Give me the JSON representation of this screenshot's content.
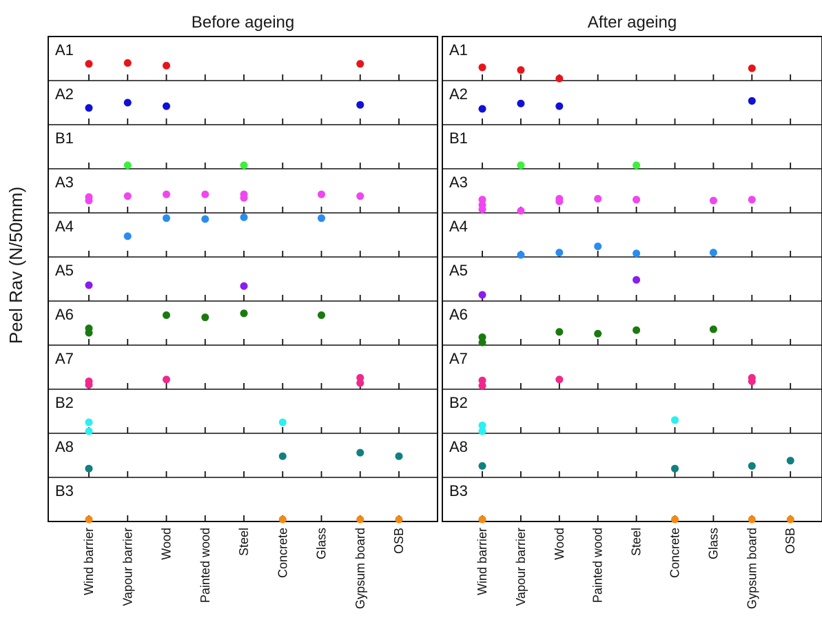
{
  "ylabel": "Peel Rav (N/50mm)",
  "categories": [
    "Wind barrier",
    "Vapour barrier",
    "Wood",
    "Painted wood",
    "Steel",
    "Concrete",
    "Glass",
    "Gypsum board",
    "OSB"
  ],
  "rows": [
    {
      "label": "A1",
      "color": "#e8141c"
    },
    {
      "label": "A2",
      "color": "#1010d8"
    },
    {
      "label": "B1",
      "color": "#3cf03c"
    },
    {
      "label": "A3",
      "color": "#f046f0"
    },
    {
      "label": "A4",
      "color": "#2a8cf0"
    },
    {
      "label": "A5",
      "color": "#8a1cf0"
    },
    {
      "label": "A6",
      "color": "#1a7a10"
    },
    {
      "label": "A7",
      "color": "#f0288c"
    },
    {
      "label": "B2",
      "color": "#2af0f0"
    },
    {
      "label": "A8",
      "color": "#108080"
    },
    {
      "label": "B3",
      "color": "#f08a14"
    }
  ],
  "chart_data": [
    {
      "type": "scatter",
      "title": "Before ageing",
      "ylabel": "Peel Rav (N/50mm)",
      "categories": [
        "Wind barrier",
        "Vapour barrier",
        "Wood",
        "Painted wood",
        "Steel",
        "Concrete",
        "Glass",
        "Gypsum board",
        "OSB"
      ],
      "note": "values are relative position within each row band (0 = bottom, 1 = top)",
      "series": [
        {
          "name": "A1",
          "points": [
            [
              0,
              0.38
            ],
            [
              1,
              0.4
            ],
            [
              2,
              0.34
            ],
            [
              7,
              0.38
            ]
          ]
        },
        {
          "name": "A2",
          "points": [
            [
              0,
              0.38
            ],
            [
              1,
              0.5
            ],
            [
              2,
              0.42
            ],
            [
              7,
              0.45
            ]
          ]
        },
        {
          "name": "B1",
          "points": [
            [
              1,
              0.08
            ],
            [
              4,
              0.08
            ]
          ]
        },
        {
          "name": "A3",
          "points": [
            [
              0,
              0.36
            ],
            [
              0,
              0.28
            ],
            [
              1,
              0.38
            ],
            [
              2,
              0.42
            ],
            [
              3,
              0.42
            ],
            [
              4,
              0.42
            ],
            [
              4,
              0.34
            ],
            [
              6,
              0.42
            ],
            [
              7,
              0.38
            ]
          ]
        },
        {
          "name": "A4",
          "points": [
            [
              1,
              0.47
            ],
            [
              2,
              0.88
            ],
            [
              3,
              0.86
            ],
            [
              4,
              0.9
            ],
            [
              6,
              0.88
            ]
          ]
        },
        {
          "name": "A5",
          "points": [
            [
              0,
              0.36
            ],
            [
              4,
              0.34
            ]
          ]
        },
        {
          "name": "A6",
          "points": [
            [
              0,
              0.38
            ],
            [
              0,
              0.28
            ],
            [
              2,
              0.68
            ],
            [
              3,
              0.63
            ],
            [
              4,
              0.72
            ],
            [
              6,
              0.68
            ]
          ]
        },
        {
          "name": "A7",
          "points": [
            [
              0,
              0.18
            ],
            [
              0,
              0.1
            ],
            [
              2,
              0.22
            ],
            [
              7,
              0.26
            ],
            [
              7,
              0.14
            ]
          ]
        },
        {
          "name": "B2",
          "points": [
            [
              0,
              0.25
            ],
            [
              0,
              0.04
            ],
            [
              5,
              0.25
            ]
          ]
        },
        {
          "name": "A8",
          "points": [
            [
              0,
              0.2
            ],
            [
              5,
              0.48
            ],
            [
              7,
              0.56
            ],
            [
              8,
              0.48
            ]
          ]
        },
        {
          "name": "B3",
          "points": [
            [
              0,
              0.04
            ],
            [
              5,
              0.04
            ],
            [
              7,
              0.04
            ],
            [
              8,
              0.04
            ]
          ]
        }
      ]
    },
    {
      "type": "scatter",
      "title": "After ageing",
      "ylabel": "Peel Rav (N/50mm)",
      "categories": [
        "Wind barrier",
        "Vapour barrier",
        "Wood",
        "Painted wood",
        "Steel",
        "Concrete",
        "Glass",
        "Gypsum board",
        "OSB"
      ],
      "note": "values are relative position within each row band (0 = bottom, 1 = top)",
      "series": [
        {
          "name": "A1",
          "points": [
            [
              0,
              0.3
            ],
            [
              1,
              0.24
            ],
            [
              2,
              0.04
            ],
            [
              7,
              0.28
            ]
          ]
        },
        {
          "name": "A2",
          "points": [
            [
              0,
              0.36
            ],
            [
              1,
              0.48
            ],
            [
              2,
              0.42
            ],
            [
              7,
              0.54
            ]
          ]
        },
        {
          "name": "B1",
          "points": [
            [
              1,
              0.08
            ],
            [
              4,
              0.08
            ]
          ]
        },
        {
          "name": "A3",
          "points": [
            [
              0,
              0.3
            ],
            [
              0,
              0.18
            ],
            [
              0,
              0.08
            ],
            [
              1,
              0.04
            ],
            [
              2,
              0.32
            ],
            [
              2,
              0.26
            ],
            [
              3,
              0.32
            ],
            [
              4,
              0.3
            ],
            [
              6,
              0.28
            ],
            [
              7,
              0.3
            ]
          ]
        },
        {
          "name": "A4",
          "points": [
            [
              1,
              0.02
            ],
            [
              2,
              0.1
            ],
            [
              3,
              0.24
            ],
            [
              4,
              0.08
            ],
            [
              6,
              0.1
            ]
          ]
        },
        {
          "name": "A5",
          "points": [
            [
              0,
              0.14
            ],
            [
              4,
              0.48
            ]
          ]
        },
        {
          "name": "A6",
          "points": [
            [
              0,
              0.18
            ],
            [
              0,
              0.06
            ],
            [
              2,
              0.3
            ],
            [
              3,
              0.26
            ],
            [
              4,
              0.34
            ],
            [
              6,
              0.36
            ]
          ]
        },
        {
          "name": "A7",
          "points": [
            [
              0,
              0.2
            ],
            [
              0,
              0.08
            ],
            [
              2,
              0.22
            ],
            [
              7,
              0.26
            ],
            [
              7,
              0.18
            ]
          ]
        },
        {
          "name": "B2",
          "points": [
            [
              0,
              0.18
            ],
            [
              0,
              0.04
            ],
            [
              5,
              0.3
            ]
          ]
        },
        {
          "name": "A8",
          "points": [
            [
              0,
              0.26
            ],
            [
              5,
              0.2
            ],
            [
              7,
              0.26
            ],
            [
              8,
              0.38
            ]
          ]
        },
        {
          "name": "B3",
          "points": [
            [
              0,
              0.04
            ],
            [
              5,
              0.04
            ],
            [
              7,
              0.04
            ],
            [
              8,
              0.04
            ]
          ]
        }
      ]
    }
  ]
}
